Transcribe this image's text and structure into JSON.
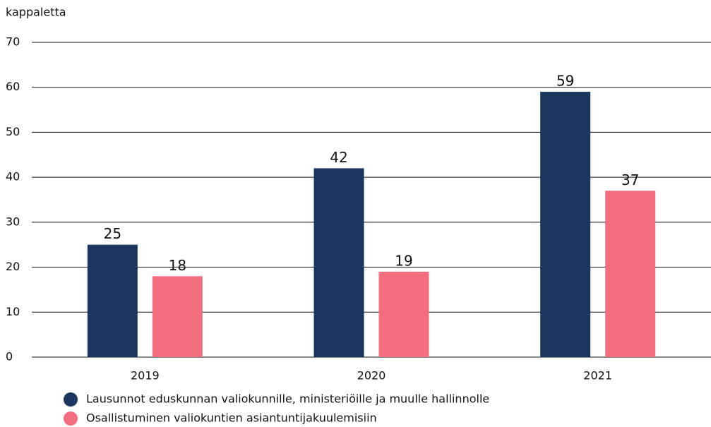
{
  "chart_data": {
    "type": "bar",
    "y_axis_label": "kappaletta",
    "categories": [
      "2019",
      "2020",
      "2021"
    ],
    "series": [
      {
        "name": "Lausunnot eduskunnan valiokunnille, ministeriöille ja muulle hallinnolle",
        "color": "#1c355e",
        "values": [
          25,
          42,
          59
        ]
      },
      {
        "name": "Osallistuminen valiokuntien asiantuntijakuulemisiin",
        "color": "#f26d7d",
        "values": [
          18,
          19,
          37
        ]
      }
    ],
    "ylim": [
      0,
      70
    ],
    "yticks": [
      0,
      10,
      20,
      30,
      40,
      50,
      60,
      70
    ],
    "grid": true,
    "legend": "bottom"
  }
}
